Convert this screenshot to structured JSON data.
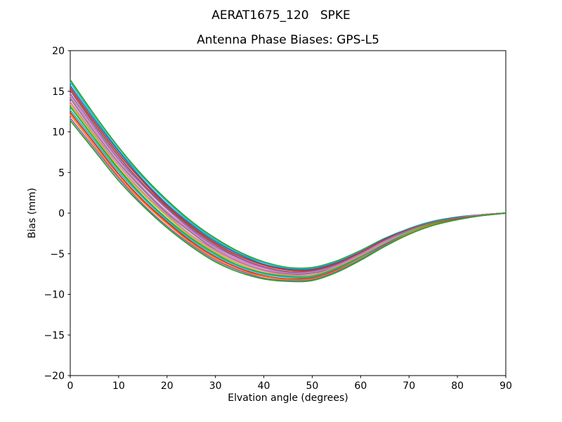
{
  "figure": {
    "suptitle": "AERAT1675_120   SPKE",
    "axes_title": "Antenna Phase Biases: GPS-L5",
    "xlabel": "Elvation angle (degrees)",
    "ylabel": "Bias (mm)"
  },
  "colors": {
    "background": "#ffffff",
    "axis": "#000000"
  },
  "chart_data": {
    "type": "line",
    "suptitle": "AERAT1675_120   SPKE",
    "title": "Antenna Phase Biases: GPS-L5",
    "xlabel": "Elvation angle (degrees)",
    "ylabel": "Bias (mm)",
    "xlim": [
      0,
      90
    ],
    "ylim": [
      -20,
      20
    ],
    "x_ticks": [
      0,
      10,
      20,
      30,
      40,
      50,
      60,
      70,
      80,
      90
    ],
    "x_tick_labels": [
      "0",
      "10",
      "20",
      "30",
      "40",
      "50",
      "60",
      "70",
      "80",
      "90"
    ],
    "y_ticks": [
      -20,
      -15,
      -10,
      -5,
      0,
      5,
      10,
      15,
      20
    ],
    "y_tick_labels": [
      "−20",
      "−15",
      "−10",
      "−5",
      "0",
      "5",
      "10",
      "15",
      "20"
    ],
    "grid": false,
    "legend": "none",
    "line_width": 1.8,
    "x": [
      0,
      5,
      10,
      15,
      20,
      25,
      30,
      35,
      40,
      45,
      50,
      55,
      60,
      65,
      70,
      75,
      80,
      85,
      90
    ],
    "series": [
      {
        "name": "line-1",
        "color": "#2ca02c",
        "values": [
          16.4,
          12.1,
          8.1,
          4.6,
          1.6,
          -1.0,
          -3.1,
          -4.8,
          -6.0,
          -6.7,
          -6.7,
          -5.9,
          -4.6,
          -3.1,
          -1.9,
          -1.0,
          -0.5,
          -0.2,
          0.0
        ]
      },
      {
        "name": "line-2",
        "color": "#17becf",
        "values": [
          16.1,
          11.8,
          7.8,
          4.4,
          1.4,
          -1.2,
          -3.3,
          -5.0,
          -6.1,
          -6.8,
          -6.8,
          -6.0,
          -4.7,
          -3.2,
          -1.9,
          -1.0,
          -0.5,
          -0.2,
          0.0
        ]
      },
      {
        "name": "line-3",
        "color": "#1f77b4",
        "values": [
          15.7,
          11.5,
          7.6,
          4.1,
          1.1,
          -1.4,
          -3.5,
          -5.1,
          -6.3,
          -6.9,
          -6.9,
          -6.1,
          -4.8,
          -3.2,
          -2.0,
          -1.1,
          -0.5,
          -0.2,
          0.0
        ]
      },
      {
        "name": "line-4",
        "color": "#d62728",
        "values": [
          15.4,
          11.2,
          7.3,
          3.9,
          0.9,
          -1.6,
          -3.7,
          -5.3,
          -6.4,
          -7.0,
          -7.0,
          -6.2,
          -4.8,
          -3.3,
          -2.0,
          -1.1,
          -0.6,
          -0.2,
          0.0
        ]
      },
      {
        "name": "line-5",
        "color": "#8c564b",
        "values": [
          15.1,
          10.9,
          7.0,
          3.6,
          0.7,
          -1.8,
          -3.9,
          -5.5,
          -6.6,
          -7.2,
          -7.1,
          -6.3,
          -4.9,
          -3.4,
          -2.1,
          -1.1,
          -0.6,
          -0.2,
          0.0
        ]
      },
      {
        "name": "line-6",
        "color": "#9467bd",
        "values": [
          14.7,
          10.6,
          6.7,
          3.4,
          0.5,
          -2.0,
          -4.1,
          -5.6,
          -6.7,
          -7.3,
          -7.2,
          -6.4,
          -5.0,
          -3.4,
          -2.1,
          -1.2,
          -0.6,
          -0.2,
          0.0
        ]
      },
      {
        "name": "line-7",
        "color": "#e377c2",
        "values": [
          14.4,
          10.3,
          6.5,
          3.1,
          0.2,
          -2.2,
          -4.3,
          -5.8,
          -6.8,
          -7.4,
          -7.3,
          -6.5,
          -5.1,
          -3.5,
          -2.2,
          -1.2,
          -0.6,
          -0.2,
          0.0
        ]
      },
      {
        "name": "line-8",
        "color": "#7f7f7f",
        "values": [
          14.1,
          10.0,
          6.2,
          2.9,
          0.0,
          -2.4,
          -4.5,
          -6.0,
          -7.0,
          -7.5,
          -7.4,
          -6.6,
          -5.2,
          -3.6,
          -2.2,
          -1.2,
          -0.6,
          -0.3,
          0.0
        ]
      },
      {
        "name": "line-9",
        "color": "#e377c2",
        "values": [
          13.7,
          9.7,
          5.9,
          2.6,
          -0.2,
          -2.7,
          -4.6,
          -6.1,
          -7.1,
          -7.6,
          -7.6,
          -6.6,
          -5.2,
          -3.6,
          -2.3,
          -1.3,
          -0.7,
          -0.3,
          0.0
        ]
      },
      {
        "name": "line-10",
        "color": "#bcbd22",
        "values": [
          13.4,
          9.5,
          5.6,
          2.4,
          -0.4,
          -2.9,
          -4.8,
          -6.3,
          -7.3,
          -7.7,
          -7.7,
          -6.7,
          -5.3,
          -3.7,
          -2.3,
          -1.3,
          -0.7,
          -0.3,
          0.0
        ]
      },
      {
        "name": "line-11",
        "color": "#2ca02c",
        "values": [
          13.1,
          9.2,
          5.4,
          2.1,
          -0.7,
          -3.1,
          -5.0,
          -6.5,
          -7.4,
          -7.8,
          -7.8,
          -6.8,
          -5.4,
          -3.8,
          -2.4,
          -1.3,
          -0.7,
          -0.3,
          0.0
        ]
      },
      {
        "name": "line-12",
        "color": "#17becf",
        "values": [
          12.7,
          8.9,
          5.1,
          1.9,
          -0.9,
          -3.3,
          -5.2,
          -6.6,
          -7.5,
          -7.9,
          -7.9,
          -6.9,
          -5.5,
          -3.8,
          -2.4,
          -1.4,
          -0.7,
          -0.3,
          0.0
        ]
      },
      {
        "name": "line-13",
        "color": "#d62728",
        "values": [
          12.4,
          8.6,
          4.8,
          1.6,
          -1.1,
          -3.5,
          -5.4,
          -6.8,
          -7.7,
          -8.1,
          -8.0,
          -7.0,
          -5.6,
          -3.9,
          -2.5,
          -1.4,
          -0.7,
          -0.3,
          0.0
        ]
      },
      {
        "name": "line-14",
        "color": "#ff7f0e",
        "values": [
          12.1,
          8.3,
          4.5,
          1.4,
          -1.3,
          -3.7,
          -5.6,
          -7.0,
          -7.8,
          -8.2,
          -8.1,
          -7.1,
          -5.6,
          -4.0,
          -2.5,
          -1.4,
          -0.8,
          -0.3,
          0.0
        ]
      },
      {
        "name": "line-15",
        "color": "#9467bd",
        "values": [
          11.7,
          8.0,
          4.3,
          1.1,
          -1.6,
          -3.9,
          -5.8,
          -7.1,
          -8.0,
          -8.3,
          -8.2,
          -7.2,
          -5.7,
          -4.0,
          -2.6,
          -1.5,
          -0.8,
          -0.3,
          0.0
        ]
      },
      {
        "name": "line-16",
        "color": "#2ca02c",
        "values": [
          11.4,
          7.7,
          4.0,
          0.9,
          -1.8,
          -4.1,
          -6.0,
          -7.3,
          -8.1,
          -8.4,
          -8.3,
          -7.3,
          -5.8,
          -4.1,
          -2.6,
          -1.5,
          -0.8,
          -0.3,
          0.0
        ]
      }
    ]
  }
}
